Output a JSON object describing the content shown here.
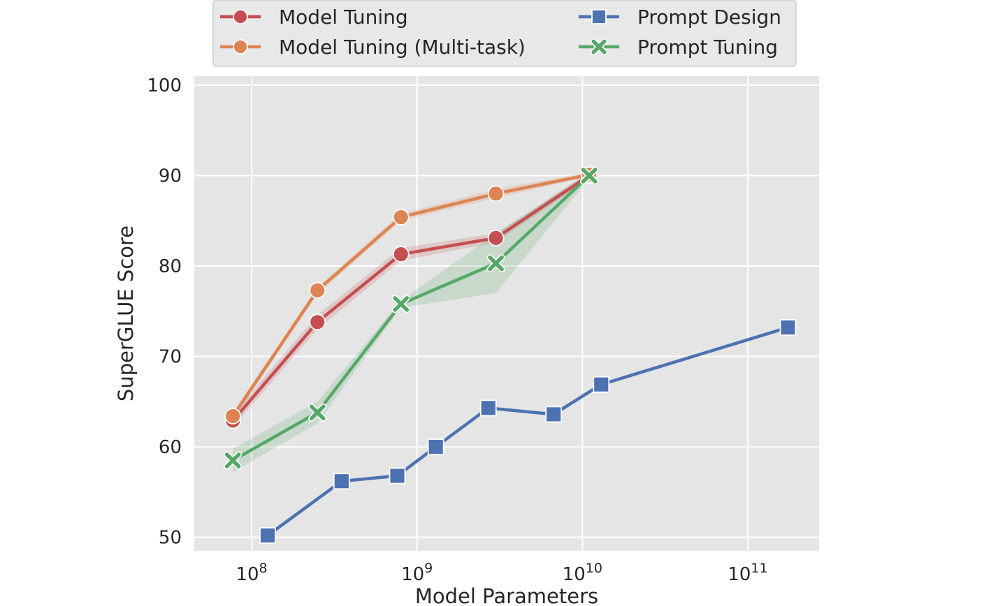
{
  "chart_data": {
    "type": "line",
    "title": "",
    "xlabel": "Model Parameters",
    "ylabel": "SuperGLUE Score",
    "xscale": "log",
    "xlim": [
      45000000,
      270000000000
    ],
    "ylim": [
      48.5,
      101
    ],
    "grid": true,
    "legend_position": "top",
    "legend_columns": 2,
    "background": "#e5e5e5",
    "x_ticks": [
      {
        "value": 100000000,
        "base": "10",
        "exp": "8"
      },
      {
        "value": 1000000000,
        "base": "10",
        "exp": "9"
      },
      {
        "value": 10000000000,
        "base": "10",
        "exp": "10"
      },
      {
        "value": 100000000000,
        "base": "10",
        "exp": "11"
      }
    ],
    "y_ticks": [
      50,
      60,
      70,
      80,
      90,
      100
    ],
    "series": [
      {
        "name": "Model Tuning",
        "color": "#c44e52",
        "marker": "circle",
        "x": [
          77000000,
          250000000,
          800000000,
          3000000000,
          11000000000
        ],
        "y": [
          62.9,
          73.8,
          81.3,
          83.1,
          90.0
        ],
        "band_lower": [
          62.2,
          73.0,
          80.6,
          82.6,
          89.6
        ],
        "band_upper": [
          63.6,
          74.6,
          82.0,
          83.6,
          90.4
        ]
      },
      {
        "name": "Model Tuning (Multi-task)",
        "color": "#dd8452",
        "marker": "circle",
        "x": [
          77000000,
          250000000,
          800000000,
          3000000000,
          11000000000
        ],
        "y": [
          63.4,
          77.3,
          85.4,
          88.0,
          90.1
        ],
        "band_lower": [
          63.0,
          76.9,
          85.0,
          87.5,
          89.9
        ],
        "band_upper": [
          63.8,
          77.7,
          85.8,
          88.5,
          90.4
        ]
      },
      {
        "name": "Prompt Design",
        "color": "#4c72b0",
        "marker": "square",
        "x": [
          125000000,
          350000000,
          760000000,
          1300000000,
          2700000000,
          6700000000,
          13000000000,
          175000000000
        ],
        "y": [
          50.2,
          56.2,
          56.8,
          60.0,
          64.3,
          63.6,
          66.9,
          73.2
        ]
      },
      {
        "name": "Prompt Tuning",
        "color": "#55a868",
        "marker": "x",
        "x": [
          77000000,
          250000000,
          800000000,
          3000000000,
          11000000000
        ],
        "y": [
          58.5,
          63.8,
          75.8,
          80.3,
          90.0
        ],
        "band_lower": [
          57.2,
          62.6,
          75.4,
          77.0,
          89.7
        ],
        "band_upper": [
          59.8,
          65.0,
          76.2,
          83.6,
          90.3
        ]
      }
    ]
  }
}
